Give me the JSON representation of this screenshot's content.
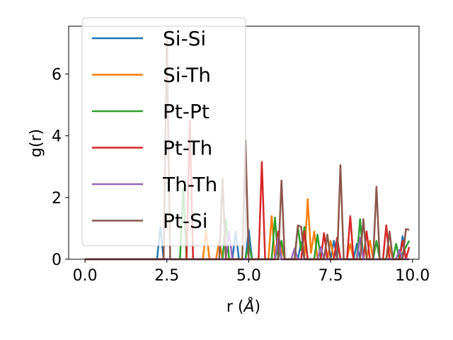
{
  "chart_data": {
    "type": "line",
    "xlabel_main": "r (",
    "xlabel_unit": "Å",
    "xlabel_close": ")",
    "ylabel": "g(r)",
    "xlim": [
      -0.5,
      10.2
    ],
    "ylim": [
      0,
      7.55
    ],
    "xticks": [
      0.0,
      2.5,
      5.0,
      7.5,
      10.0
    ],
    "xtick_labels": [
      "0.0",
      "2.5",
      "5.0",
      "7.5",
      "10.0"
    ],
    "yticks": [
      0,
      2,
      4,
      6
    ],
    "ytick_labels": [
      "0",
      "2",
      "4",
      "6"
    ],
    "grid": false,
    "legend_position": "upper left",
    "series": [
      {
        "name": "Si-Si",
        "color": "#1f77b4",
        "points": [
          [
            0,
            0
          ],
          [
            2.2,
            0
          ],
          [
            2.3,
            1.05
          ],
          [
            2.4,
            0
          ],
          [
            4.5,
            0
          ],
          [
            4.6,
            0.9
          ],
          [
            4.7,
            0
          ],
          [
            4.9,
            0
          ],
          [
            5.0,
            0.95
          ],
          [
            5.1,
            0
          ],
          [
            5.8,
            0
          ],
          [
            5.9,
            0.5
          ],
          [
            6.0,
            0
          ],
          [
            6.5,
            0
          ],
          [
            6.6,
            0.55
          ],
          [
            6.7,
            0
          ],
          [
            7.5,
            0
          ],
          [
            7.6,
            0.6
          ],
          [
            7.7,
            0
          ],
          [
            8.2,
            0
          ],
          [
            8.3,
            0.5
          ],
          [
            8.4,
            0
          ],
          [
            9.6,
            0
          ],
          [
            9.7,
            0.75
          ],
          [
            9.8,
            0
          ],
          [
            9.9,
            0
          ]
        ]
      },
      {
        "name": "Si-Th",
        "color": "#ff7f0e",
        "points": [
          [
            0,
            0
          ],
          [
            3.6,
            0
          ],
          [
            3.7,
            0.95
          ],
          [
            3.8,
            0
          ],
          [
            4.0,
            0
          ],
          [
            4.1,
            0.6
          ],
          [
            4.2,
            0
          ],
          [
            5.6,
            0
          ],
          [
            5.7,
            1.4
          ],
          [
            5.8,
            0
          ],
          [
            5.9,
            0.7
          ],
          [
            6.0,
            0.3
          ],
          [
            6.1,
            0
          ],
          [
            6.7,
            0
          ],
          [
            6.8,
            1.95
          ],
          [
            6.9,
            0.2
          ],
          [
            7.0,
            0.9
          ],
          [
            7.1,
            0
          ],
          [
            7.4,
            0
          ],
          [
            7.5,
            0.6
          ],
          [
            7.6,
            0
          ],
          [
            8.0,
            0
          ],
          [
            8.1,
            0.5
          ],
          [
            8.2,
            0
          ],
          [
            8.6,
            0
          ],
          [
            8.7,
            0.6
          ],
          [
            8.8,
            0
          ],
          [
            9.2,
            0
          ],
          [
            9.3,
            0.4
          ],
          [
            9.4,
            0
          ],
          [
            9.9,
            0
          ]
        ]
      },
      {
        "name": "Pt-Pt",
        "color": "#2ca02c",
        "points": [
          [
            0,
            0
          ],
          [
            2.9,
            0
          ],
          [
            3.0,
            2.3
          ],
          [
            3.1,
            0
          ],
          [
            4.2,
            0
          ],
          [
            4.3,
            1.3
          ],
          [
            4.4,
            0
          ],
          [
            4.9,
            0
          ],
          [
            5.0,
            0.5
          ],
          [
            5.1,
            0
          ],
          [
            5.7,
            0
          ],
          [
            5.8,
            1.35
          ],
          [
            5.9,
            0
          ],
          [
            6.0,
            0.6
          ],
          [
            6.1,
            0
          ],
          [
            6.4,
            0
          ],
          [
            6.5,
            1.05
          ],
          [
            6.6,
            0.3
          ],
          [
            6.7,
            1.05
          ],
          [
            6.8,
            0
          ],
          [
            7.0,
            0
          ],
          [
            7.1,
            0.8
          ],
          [
            7.2,
            0
          ],
          [
            7.6,
            0
          ],
          [
            7.7,
            0.7
          ],
          [
            7.8,
            0
          ],
          [
            8.3,
            0
          ],
          [
            8.4,
            1.3
          ],
          [
            8.5,
            0
          ],
          [
            8.8,
            0
          ],
          [
            8.9,
            0.6
          ],
          [
            9.0,
            0
          ],
          [
            9.4,
            0
          ],
          [
            9.5,
            0.5
          ],
          [
            9.6,
            0
          ],
          [
            9.9,
            0.6
          ]
        ]
      },
      {
        "name": "Pt-Th",
        "color": "#d62728",
        "points": [
          [
            0,
            0
          ],
          [
            3.1,
            0
          ],
          [
            3.2,
            4.5
          ],
          [
            3.3,
            0
          ],
          [
            5.3,
            0
          ],
          [
            5.4,
            3.15
          ],
          [
            5.5,
            0
          ],
          [
            5.8,
            0
          ],
          [
            5.9,
            0.9
          ],
          [
            6.0,
            0
          ],
          [
            6.6,
            0
          ],
          [
            6.7,
            0.9
          ],
          [
            6.8,
            0
          ],
          [
            7.2,
            0
          ],
          [
            7.3,
            0.85
          ],
          [
            7.4,
            0
          ],
          [
            7.6,
            0
          ],
          [
            7.7,
            0.7
          ],
          [
            7.8,
            0
          ],
          [
            8.0,
            0
          ],
          [
            8.1,
            1.4
          ],
          [
            8.2,
            0
          ],
          [
            8.5,
            0
          ],
          [
            8.6,
            0.9
          ],
          [
            8.7,
            0
          ],
          [
            9.1,
            0
          ],
          [
            9.2,
            1.1
          ],
          [
            9.3,
            0
          ],
          [
            9.6,
            0
          ],
          [
            9.7,
            0.6
          ],
          [
            9.8,
            0
          ],
          [
            9.9,
            0.4
          ]
        ]
      },
      {
        "name": "Th-Th",
        "color": "#9467bd",
        "points": [
          [
            0,
            0
          ],
          [
            4.3,
            0
          ],
          [
            4.4,
            0.9
          ],
          [
            4.5,
            0
          ],
          [
            5.8,
            0
          ],
          [
            5.9,
            0.7
          ],
          [
            6.0,
            0
          ],
          [
            6.3,
            0
          ],
          [
            6.4,
            0.35
          ],
          [
            6.5,
            0
          ],
          [
            7.1,
            0
          ],
          [
            7.2,
            0.4
          ],
          [
            7.3,
            0
          ],
          [
            8.3,
            0
          ],
          [
            8.4,
            0.7
          ],
          [
            8.5,
            0
          ],
          [
            9.5,
            0
          ],
          [
            9.6,
            0.3
          ],
          [
            9.7,
            0
          ],
          [
            9.9,
            0
          ]
        ]
      },
      {
        "name": "Pt-Si",
        "color": "#8c564b",
        "points": [
          [
            0,
            0
          ],
          [
            2.4,
            0
          ],
          [
            2.5,
            7.1
          ],
          [
            2.6,
            0
          ],
          [
            4.1,
            0
          ],
          [
            4.2,
            2.6
          ],
          [
            4.3,
            0
          ],
          [
            4.8,
            0
          ],
          [
            4.9,
            3.85
          ],
          [
            5.0,
            0
          ],
          [
            5.9,
            0
          ],
          [
            6.0,
            2.55
          ],
          [
            6.1,
            0
          ],
          [
            6.4,
            0
          ],
          [
            6.5,
            1.1
          ],
          [
            6.6,
            1.05
          ],
          [
            6.7,
            0
          ],
          [
            7.3,
            0
          ],
          [
            7.4,
            0.8
          ],
          [
            7.5,
            0
          ],
          [
            7.7,
            0
          ],
          [
            7.8,
            3.05
          ],
          [
            7.9,
            0
          ],
          [
            8.4,
            0
          ],
          [
            8.5,
            1.3
          ],
          [
            8.6,
            0
          ],
          [
            8.8,
            0
          ],
          [
            8.9,
            2.35
          ],
          [
            9.0,
            0
          ],
          [
            9.2,
            0
          ],
          [
            9.3,
            0.9
          ],
          [
            9.4,
            0
          ],
          [
            9.7,
            0
          ],
          [
            9.8,
            0.98
          ],
          [
            9.9,
            0.95
          ]
        ]
      }
    ]
  }
}
